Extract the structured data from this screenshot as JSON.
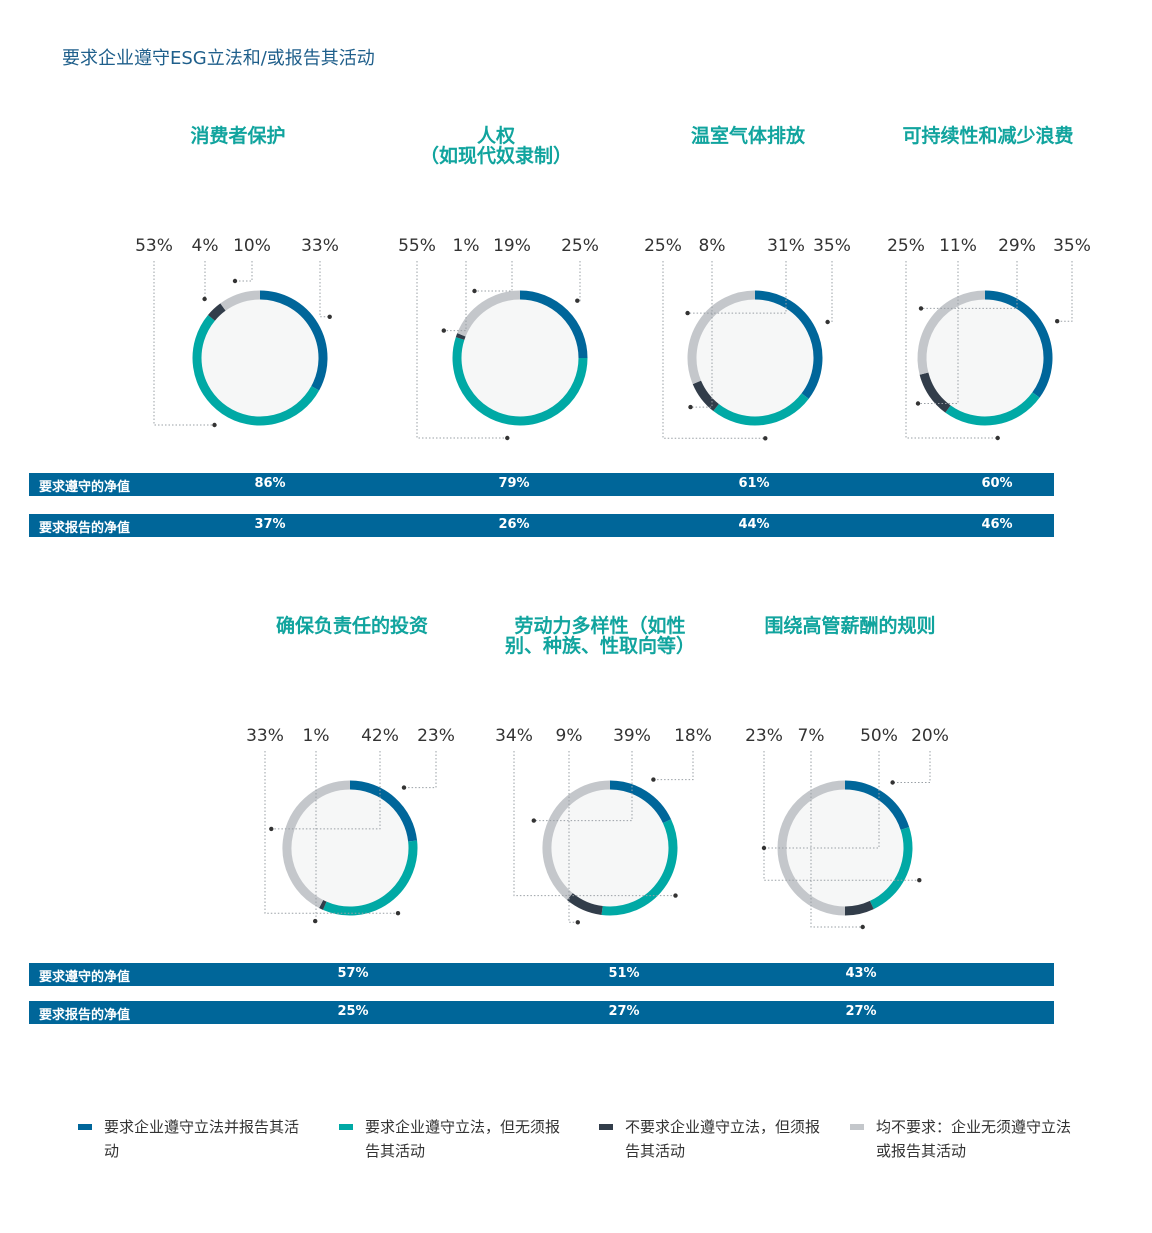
{
  "title": "要求企业遵守ESG立法和/或报告其活动",
  "colors": {
    "comply_and_report": "#00669a",
    "comply_no_report": "#00a9a5",
    "report_no_comply": "#323d4a",
    "neither": "#c4c7cb",
    "title_teal": "#11a49e",
    "bar": "#006699"
  },
  "row_labels": {
    "net_comply": "要求遵守的净值",
    "net_report": "要求报告的净值"
  },
  "legend": [
    {
      "key": "comply_and_report",
      "label": "要求企业遵守立法并报告其活动"
    },
    {
      "key": "comply_no_report",
      "label": "要求企业遵守立法，但无须报告其活动"
    },
    {
      "key": "report_no_comply",
      "label": "不要求企业遵守立法，但须报告其活动"
    },
    {
      "key": "neither",
      "label": "均不要求：企业无须遵守立法或报告其活动"
    }
  ],
  "chart_data": {
    "type": "pie",
    "series_order": [
      "comply_and_report",
      "comply_no_report",
      "report_no_comply",
      "neither"
    ],
    "charts": [
      {
        "title": [
          "消费者保护"
        ],
        "values": {
          "comply_and_report": 33,
          "comply_no_report": 53,
          "report_no_comply": 4,
          "neither": 10
        },
        "net_comply": "86%",
        "net_report": "37%"
      },
      {
        "title": [
          "人权",
          "（如现代奴隶制）"
        ],
        "values": {
          "comply_and_report": 25,
          "comply_no_report": 55,
          "report_no_comply": 1,
          "neither": 19
        },
        "net_comply": "79%",
        "net_report": "26%"
      },
      {
        "title": [
          "温室气体排放"
        ],
        "values": {
          "comply_and_report": 35,
          "comply_no_report": 25,
          "report_no_comply": 8,
          "neither": 31
        },
        "net_comply": "61%",
        "net_report": "44%"
      },
      {
        "title": [
          "可持续性和减少浪费"
        ],
        "values": {
          "comply_and_report": 35,
          "comply_no_report": 25,
          "report_no_comply": 11,
          "neither": 29
        },
        "net_comply": "60%",
        "net_report": "46%"
      },
      {
        "title": [
          "确保负责任的投资"
        ],
        "values": {
          "comply_and_report": 23,
          "comply_no_report": 33,
          "report_no_comply": 1,
          "neither": 42
        },
        "net_comply": "57%",
        "net_report": "25%"
      },
      {
        "title": [
          "劳动力多样性（如性",
          "别、种族、性取向等）"
        ],
        "values": {
          "comply_and_report": 18,
          "comply_no_report": 34,
          "report_no_comply": 9,
          "neither": 39
        },
        "net_comply": "51%",
        "net_report": "27%"
      },
      {
        "title": [
          "围绕高管薪酬的规则"
        ],
        "values": {
          "comply_and_report": 20,
          "comply_no_report": 23,
          "report_no_comply": 7,
          "neither": 50
        },
        "net_comply": "43%",
        "net_report": "27%"
      }
    ]
  }
}
